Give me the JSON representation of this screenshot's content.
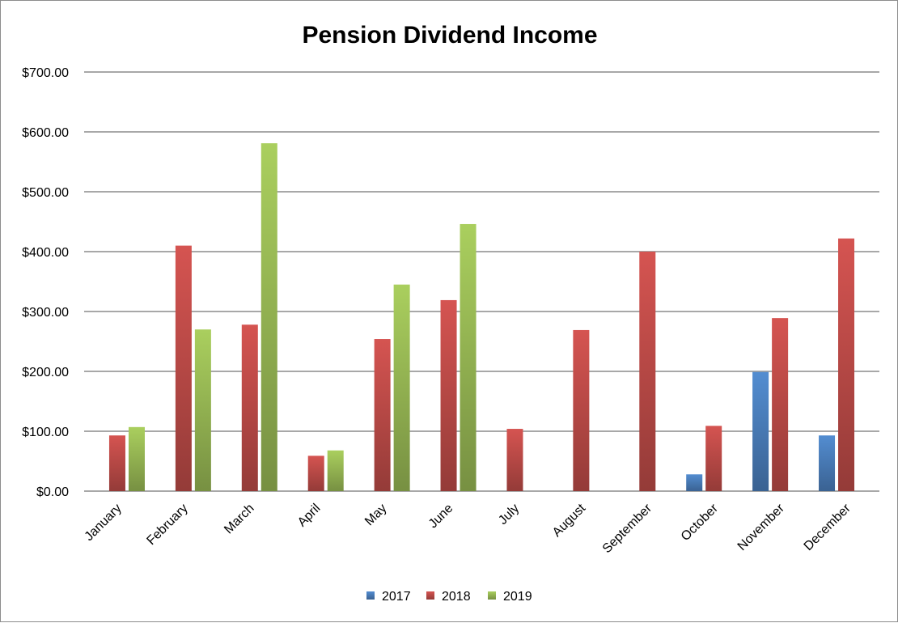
{
  "chart_data": {
    "type": "bar",
    "title": "Pension Dividend Income",
    "xlabel": "",
    "ylabel": "",
    "ylim": [
      0,
      700
    ],
    "yticks": [
      "$0.00",
      "$100.00",
      "$200.00",
      "$300.00",
      "$400.00",
      "$500.00",
      "$600.00",
      "$700.00"
    ],
    "ytick_values": [
      0,
      100,
      200,
      300,
      400,
      500,
      600,
      700
    ],
    "categories": [
      "January",
      "February",
      "March",
      "April",
      "May",
      "June",
      "July",
      "August",
      "September",
      "October",
      "November",
      "December"
    ],
    "series": [
      {
        "name": "2017",
        "color": "#4a7ebb",
        "values": [
          null,
          null,
          null,
          null,
          null,
          null,
          null,
          null,
          null,
          28,
          199,
          93
        ]
      },
      {
        "name": "2018",
        "color": "#be4b48",
        "values": [
          93,
          410,
          278,
          59,
          254,
          319,
          104,
          269,
          400,
          109,
          289,
          422
        ]
      },
      {
        "name": "2019",
        "color": "#98b954",
        "values": [
          107,
          270,
          581,
          68,
          345,
          446,
          null,
          null,
          null,
          null,
          null,
          null
        ]
      }
    ],
    "grid": true,
    "legend_position": "bottom"
  }
}
